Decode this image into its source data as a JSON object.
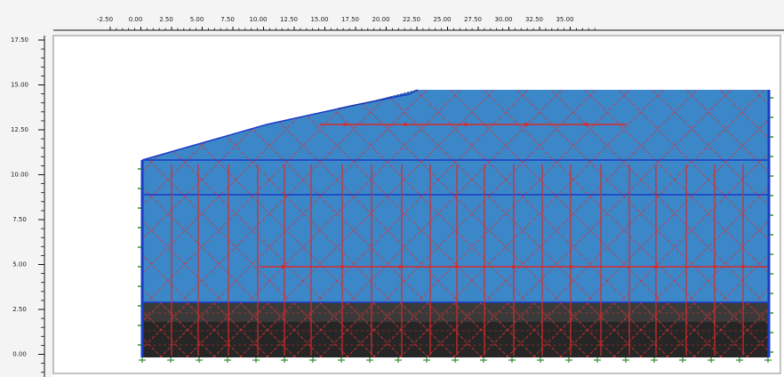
{
  "rulers": {
    "top": {
      "labels": [
        "-2.50",
        "0.00",
        "2.50",
        "5.00",
        "7.50",
        "10.00",
        "12.50",
        "15.00",
        "17.50",
        "20.00",
        "22.50",
        "25.00",
        "27.50",
        "30.00",
        "32.50",
        "35.00"
      ]
    },
    "left": {
      "labels": [
        "17.50",
        "15.00",
        "12.50",
        "10.00",
        "7.50",
        "5.00",
        "2.50",
        "0.00"
      ]
    }
  },
  "model": {
    "colors": {
      "upper_soil": "#3b87c8",
      "lower_soil_1": "#3a3a3a",
      "lower_soil_2": "#262626",
      "mesh_lines": "#e03030",
      "structures": "#d92b2b",
      "boundary": "#1a3cc8",
      "fixities": "#2f8f2f",
      "ruler_background": "#f4f4f4"
    }
  }
}
